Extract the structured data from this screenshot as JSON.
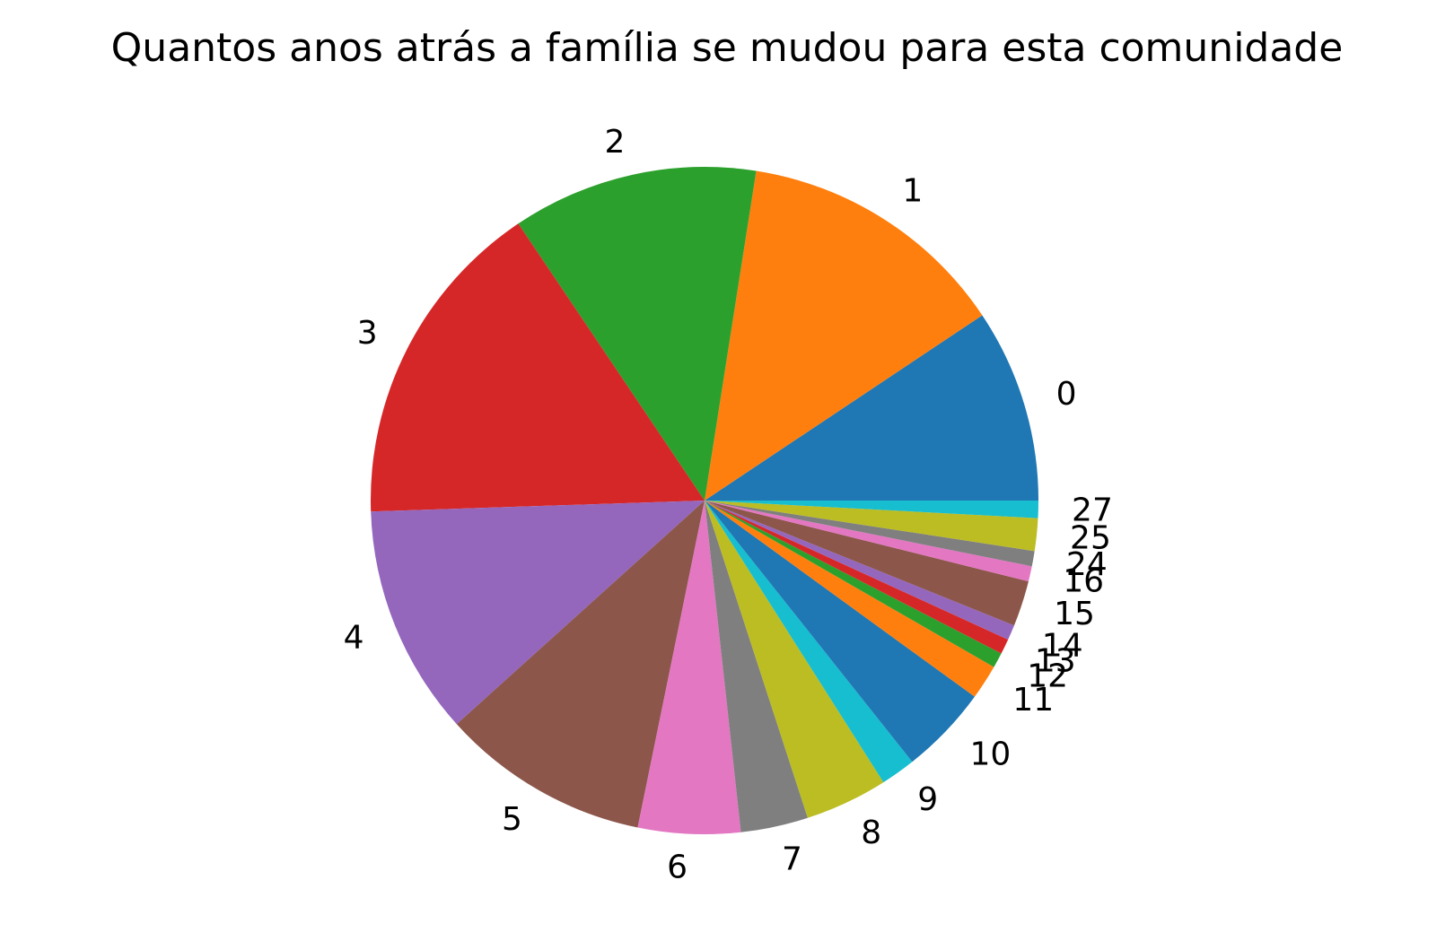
{
  "chart_data": {
    "type": "pie",
    "title": "Quantos anos atrás a família se mudou para esta comunidade",
    "start_angle_deg": 0,
    "direction": "counterclockwise",
    "slices": [
      {
        "label": "0",
        "value": 8.9,
        "color": "#1f77b4"
      },
      {
        "label": "1",
        "value": 12.5,
        "color": "#ff7f0e"
      },
      {
        "label": "2",
        "value": 11.3,
        "color": "#2ca02c"
      },
      {
        "label": "3",
        "value": 15.3,
        "color": "#d62728"
      },
      {
        "label": "4",
        "value": 10.6,
        "color": "#9467bd"
      },
      {
        "label": "5",
        "value": 9.6,
        "color": "#8c564b"
      },
      {
        "label": "6",
        "value": 4.7,
        "color": "#e377c2"
      },
      {
        "label": "7",
        "value": 3.1,
        "color": "#7f7f7f"
      },
      {
        "label": "8",
        "value": 3.8,
        "color": "#bcbd22"
      },
      {
        "label": "9",
        "value": 1.6,
        "color": "#17becf"
      },
      {
        "label": "10",
        "value": 4.1,
        "color": "#1f77b4"
      },
      {
        "label": "11",
        "value": 1.6,
        "color": "#ff7f0e"
      },
      {
        "label": "12",
        "value": 0.7,
        "color": "#2ca02c"
      },
      {
        "label": "13",
        "value": 0.7,
        "color": "#d62728"
      },
      {
        "label": "14",
        "value": 0.7,
        "color": "#9467bd"
      },
      {
        "label": "15",
        "value": 2.1,
        "color": "#8c564b"
      },
      {
        "label": "16",
        "value": 0.7,
        "color": "#e377c2"
      },
      {
        "label": "24",
        "value": 0.7,
        "color": "#7f7f7f"
      },
      {
        "label": "25",
        "value": 1.5,
        "color": "#bcbd22"
      },
      {
        "label": "27",
        "value": 0.8,
        "color": "#17becf"
      }
    ]
  }
}
